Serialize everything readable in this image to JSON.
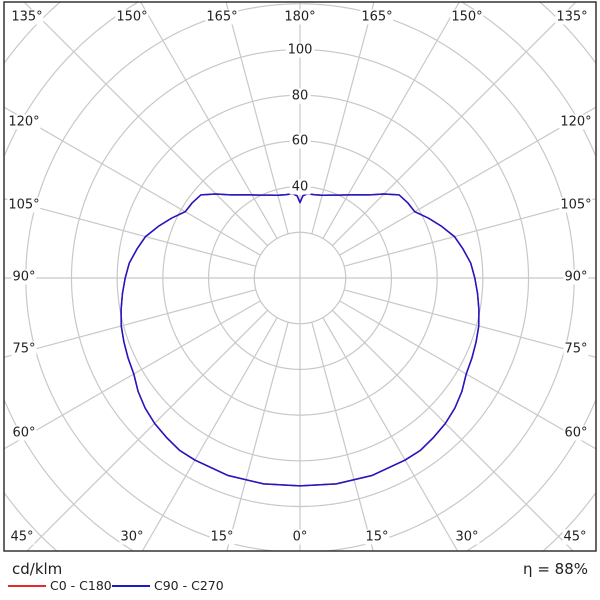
{
  "chart_data": {
    "type": "polar",
    "unit_label": "cd/klm",
    "efficiency_label": "η = 88%",
    "radial_ticks": [
      20,
      40,
      60,
      80,
      100
    ],
    "radial_tick_labels": [
      "40",
      "60",
      "80",
      "100"
    ],
    "angle_labels_top": [
      "135°",
      "150°",
      "165°",
      "180°",
      "165°",
      "150°",
      "135°"
    ],
    "angle_labels_left": [
      "120°",
      "105°",
      "90°",
      "75°",
      "60°"
    ],
    "angle_labels_right": [
      "120°",
      "105°",
      "90°",
      "75°",
      "60°"
    ],
    "angle_labels_bottom": [
      "45°",
      "30°",
      "15°",
      "0°",
      "15°",
      "30°",
      "45°"
    ],
    "grid": true,
    "legend_position": "bottom-left",
    "series": [
      {
        "name": "C0 - C180",
        "color": "#e8292b",
        "angles": [
          0,
          10,
          20,
          30,
          35,
          40,
          45,
          50,
          55,
          60,
          65,
          70,
          75,
          80,
          85,
          90,
          95,
          100,
          105,
          110,
          115,
          120,
          125,
          130,
          135,
          140,
          145,
          150,
          155,
          160,
          165,
          170,
          175,
          178,
          180
        ],
        "values": [
          91,
          91.5,
          92,
          92,
          92,
          91,
          90,
          88.5,
          86.5,
          84,
          83,
          82,
          81,
          79.5,
          78,
          76.5,
          75,
          72.5,
          70,
          66,
          62,
          58,
          57.5,
          56.6,
          52,
          47.5,
          44.5,
          42,
          40,
          38.6,
          37.5,
          37,
          37,
          36,
          33
        ]
      },
      {
        "name": "C90 - C270",
        "color": "#1a1acc",
        "angles": [
          0,
          10,
          20,
          30,
          35,
          40,
          45,
          50,
          55,
          60,
          65,
          70,
          75,
          80,
          85,
          90,
          95,
          100,
          105,
          110,
          115,
          120,
          125,
          130,
          135,
          140,
          145,
          150,
          155,
          160,
          165,
          170,
          175,
          178,
          180
        ],
        "values": [
          91,
          91.5,
          92,
          92,
          92,
          91,
          90,
          88.5,
          86.5,
          84,
          83,
          82,
          81,
          79.5,
          78,
          76.5,
          75,
          72.5,
          70,
          66,
          62,
          58,
          57.5,
          56.6,
          52,
          47.5,
          44.5,
          42,
          40,
          38.6,
          37.5,
          37,
          37,
          36,
          33
        ]
      }
    ]
  }
}
